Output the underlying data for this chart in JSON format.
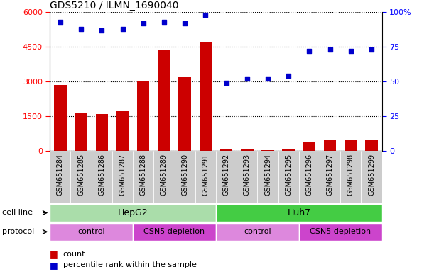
{
  "title": "GDS5210 / ILMN_1690040",
  "samples": [
    "GSM651284",
    "GSM651285",
    "GSM651286",
    "GSM651287",
    "GSM651288",
    "GSM651289",
    "GSM651290",
    "GSM651291",
    "GSM651292",
    "GSM651293",
    "GSM651294",
    "GSM651295",
    "GSM651296",
    "GSM651297",
    "GSM651298",
    "GSM651299"
  ],
  "counts": [
    2850,
    1650,
    1600,
    1750,
    3050,
    4350,
    3200,
    4700,
    100,
    60,
    30,
    80,
    400,
    500,
    450,
    500
  ],
  "percentiles": [
    93,
    88,
    87,
    88,
    92,
    93,
    92,
    98,
    49,
    52,
    52,
    54,
    72,
    73,
    72,
    73
  ],
  "ylim_left": [
    0,
    6000
  ],
  "ylim_right": [
    0,
    100
  ],
  "yticks_left": [
    0,
    1500,
    3000,
    4500,
    6000
  ],
  "yticks_right": [
    0,
    25,
    50,
    75,
    100
  ],
  "bar_color": "#cc0000",
  "dot_color": "#0000cc",
  "cell_line_hepg2_color": "#aaddaa",
  "cell_line_huh7_color": "#44cc44",
  "protocol_light_color": "#dd88dd",
  "protocol_dark_color": "#cc44cc",
  "cell_line_label": "cell line",
  "protocol_label": "protocol",
  "cell_lines": [
    {
      "label": "HepG2",
      "start": 0,
      "end": 8
    },
    {
      "label": "Huh7",
      "start": 8,
      "end": 16
    }
  ],
  "protocols": [
    {
      "label": "control",
      "start": 0,
      "end": 4,
      "dark": false
    },
    {
      "label": "CSN5 depletion",
      "start": 4,
      "end": 8,
      "dark": true
    },
    {
      "label": "control",
      "start": 8,
      "end": 12,
      "dark": false
    },
    {
      "label": "CSN5 depletion",
      "start": 12,
      "end": 16,
      "dark": true
    }
  ],
  "legend_count_label": "count",
  "legend_pct_label": "percentile rank within the sample",
  "xtick_bg": "#cccccc"
}
